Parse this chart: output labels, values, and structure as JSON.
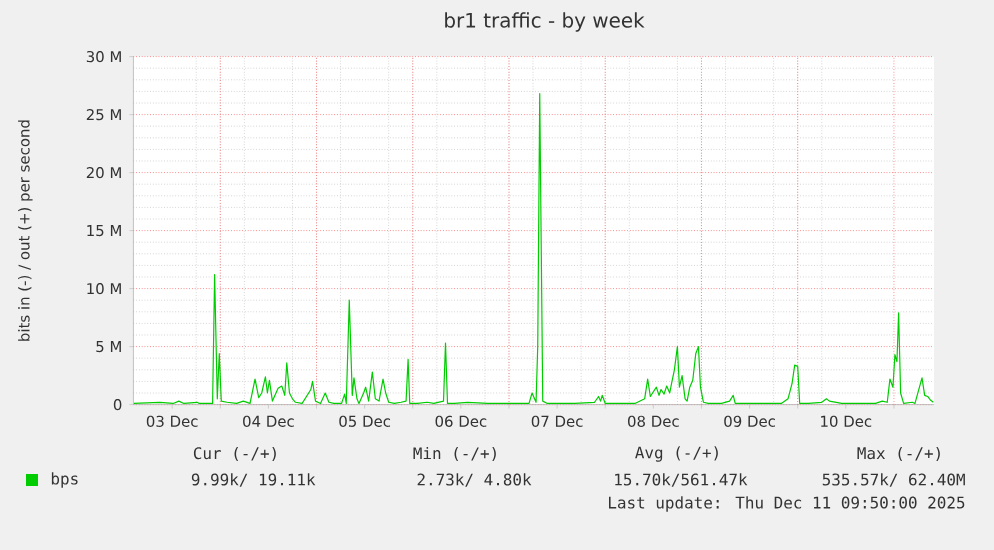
{
  "chart_data": {
    "type": "line",
    "title": "br1 traffic - by week",
    "ylabel": "bits in (-) / out (+) per second",
    "x": [
      "2025-12-03T02:25",
      "2025-12-03T08:55",
      "2025-12-03T12:15",
      "2025-12-03T13:40",
      "2025-12-03T14:55",
      "2025-12-03T18:15",
      "2025-12-03T18:45",
      "2025-12-03T22:05",
      "2025-12-03T22:35",
      "2025-12-03T23:15",
      "2025-12-03T23:45",
      "2025-12-04T00:15",
      "2025-12-04T01:40",
      "2025-12-04T04:05",
      "2025-12-04T05:45",
      "2025-12-04T07:25",
      "2025-12-04T08:40",
      "2025-12-04T09:35",
      "2025-12-04T10:20",
      "2025-12-04T11:15",
      "2025-12-04T11:45",
      "2025-12-04T12:15",
      "2025-12-04T13:00",
      "2025-12-04T14:25",
      "2025-12-04T15:20",
      "2025-12-04T16:05",
      "2025-12-04T16:35",
      "2025-12-04T17:15",
      "2025-12-04T18:00",
      "2025-12-04T18:45",
      "2025-12-04T20:25",
      "2025-12-04T22:35",
      "2025-12-04T23:00",
      "2025-12-04T23:45",
      "2025-12-05T01:00",
      "2025-12-05T02:10",
      "2025-12-05T03:05",
      "2025-12-05T04:20",
      "2025-12-05T06:15",
      "2025-12-05T07:00",
      "2025-12-05T07:25",
      "2025-12-05T08:10",
      "2025-12-05T08:55",
      "2025-12-05T09:20",
      "2025-12-05T10:05",
      "2025-12-05T10:35",
      "2025-12-05T11:45",
      "2025-12-05T12:15",
      "2025-12-05T13:00",
      "2025-12-05T13:55",
      "2025-12-05T14:40",
      "2025-12-05T15:35",
      "2025-12-05T16:35",
      "2025-12-05T17:15",
      "2025-12-05T18:00",
      "2025-12-05T19:25",
      "2025-12-05T21:05",
      "2025-12-05T22:20",
      "2025-12-05T22:50",
      "2025-12-05T23:15",
      "2025-12-06T01:10",
      "2025-12-06T03:35",
      "2025-12-06T05:15",
      "2025-12-06T07:40",
      "2025-12-06T08:10",
      "2025-12-06T08:40",
      "2025-12-06T10:20",
      "2025-12-06T13:40",
      "2025-12-06T18:45",
      "2025-12-06T22:50",
      "2025-12-07T03:05",
      "2025-12-07T05:00",
      "2025-12-07T05:45",
      "2025-12-07T06:45",
      "2025-12-07T07:10",
      "2025-12-07T07:40",
      "2025-12-07T08:25",
      "2025-12-07T09:35",
      "2025-12-07T16:20",
      "2025-12-07T21:20",
      "2025-12-07T22:20",
      "2025-12-07T22:50",
      "2025-12-07T23:15",
      "2025-12-08T00:00",
      "2025-12-08T04:05",
      "2025-12-08T07:25",
      "2025-12-08T09:50",
      "2025-12-08T10:35",
      "2025-12-08T11:15",
      "2025-12-08T12:00",
      "2025-12-08T12:45",
      "2025-12-08T13:25",
      "2025-12-08T13:55",
      "2025-12-08T14:40",
      "2025-12-08T15:20",
      "2025-12-08T16:05",
      "2025-12-08T16:35",
      "2025-12-08T17:15",
      "2025-12-08T18:00",
      "2025-12-08T18:30",
      "2025-12-08T19:10",
      "2025-12-08T19:55",
      "2025-12-08T20:25",
      "2025-12-08T21:05",
      "2025-12-08T21:50",
      "2025-12-08T22:35",
      "2025-12-08T23:15",
      "2025-12-08T23:45",
      "2025-12-09T00:30",
      "2025-12-09T01:40",
      "2025-12-09T05:00",
      "2025-12-09T07:00",
      "2025-12-09T07:55",
      "2025-12-09T08:25",
      "2025-12-09T11:45",
      "2025-12-09T15:05",
      "2025-12-09T19:55",
      "2025-12-09T21:35",
      "2025-12-09T22:35",
      "2025-12-09T23:15",
      "2025-12-10T00:00",
      "2025-12-10T00:30",
      "2025-12-10T02:40",
      "2025-12-10T06:00",
      "2025-12-10T07:10",
      "2025-12-10T07:55",
      "2025-12-10T11:00",
      "2025-12-10T14:25",
      "2025-12-10T19:25",
      "2025-12-10T21:05",
      "2025-12-10T22:20",
      "2025-12-10T23:00",
      "2025-12-10T23:45",
      "2025-12-11T00:15",
      "2025-12-11T00:45",
      "2025-12-11T01:10",
      "2025-12-11T01:40",
      "2025-12-11T02:25",
      "2025-12-11T04:35",
      "2025-12-11T05:15",
      "2025-12-11T07:00",
      "2025-12-11T07:40",
      "2025-12-11T08:25",
      "2025-12-11T09:05",
      "2025-12-11T09:50"
    ],
    "series": [
      {
        "name": "bps",
        "color": "#00cc00",
        "values": [
          0.1,
          0.2,
          0.1,
          0.3,
          0.1,
          0.2,
          0.1,
          0.1,
          11.2,
          0.5,
          4.4,
          0.3,
          0.2,
          0.1,
          0.3,
          0.1,
          2.2,
          0.6,
          1.0,
          2.4,
          1.0,
          2.1,
          0.3,
          1.4,
          1.6,
          0.8,
          3.6,
          1.0,
          0.5,
          0.2,
          0.1,
          1.3,
          2.0,
          0.3,
          0.1,
          1.0,
          0.2,
          0.1,
          0.1,
          0.9,
          0.1,
          9.0,
          0.8,
          2.3,
          0.5,
          0.1,
          1.0,
          1.5,
          0.3,
          2.8,
          0.5,
          0.3,
          2.2,
          1.0,
          0.2,
          0.1,
          0.2,
          0.3,
          3.9,
          0.1,
          0.1,
          0.2,
          0.1,
          0.3,
          5.3,
          0.1,
          0.1,
          0.2,
          0.1,
          0.1,
          0.1,
          0.1,
          1.0,
          0.2,
          5.0,
          26.8,
          0.3,
          0.1,
          0.1,
          0.2,
          0.7,
          0.3,
          0.8,
          0.1,
          0.1,
          0.1,
          0.5,
          2.2,
          0.7,
          1.1,
          1.5,
          0.8,
          1.3,
          0.9,
          1.6,
          1.0,
          1.9,
          3.0,
          5.0,
          1.5,
          2.5,
          0.5,
          0.3,
          1.5,
          2.1,
          4.4,
          5.0,
          1.5,
          0.2,
          0.1,
          0.1,
          0.3,
          0.8,
          0.1,
          0.1,
          0.1,
          0.1,
          0.5,
          1.8,
          3.4,
          3.3,
          0.1,
          0.1,
          0.2,
          0.5,
          0.3,
          0.1,
          0.1,
          0.1,
          0.3,
          0.2,
          2.2,
          1.5,
          4.3,
          3.7,
          7.9,
          1.0,
          0.1,
          0.2,
          0.1,
          2.3,
          0.8,
          0.7,
          0.4,
          0.2
        ]
      }
    ],
    "xlim": [
      "2025-12-03T02:20",
      "2025-12-11T10:00"
    ],
    "ylim": [
      0,
      30
    ],
    "xticks": [
      {
        "value": "2025-12-03T12:00",
        "label": "03 Dec"
      },
      {
        "value": "2025-12-04T12:00",
        "label": "04 Dec"
      },
      {
        "value": "2025-12-05T12:00",
        "label": "05 Dec"
      },
      {
        "value": "2025-12-06T12:00",
        "label": "06 Dec"
      },
      {
        "value": "2025-12-07T12:00",
        "label": "07 Dec"
      },
      {
        "value": "2025-12-08T12:00",
        "label": "08 Dec"
      },
      {
        "value": "2025-12-09T12:00",
        "label": "09 Dec"
      },
      {
        "value": "2025-12-10T12:00",
        "label": "10 Dec"
      },
      {
        "value": "2025-12-04",
        "label": null
      },
      {
        "value": "2025-12-05",
        "label": null
      },
      {
        "value": "2025-12-06",
        "label": null
      },
      {
        "value": "2025-12-07",
        "label": null
      },
      {
        "value": "2025-12-08",
        "label": null
      },
      {
        "value": "2025-12-09",
        "label": null
      },
      {
        "value": "2025-12-10",
        "label": null
      },
      {
        "value": "2025-12-11",
        "label": null
      }
    ],
    "yticks": [
      0,
      {
        "value": 5,
        "label": "5 M"
      },
      {
        "value": 10,
        "label": "10 M"
      },
      {
        "value": 15,
        "label": "15 M"
      },
      {
        "value": 20,
        "label": "20 M"
      },
      {
        "value": 25,
        "label": "25 M"
      },
      {
        "value": 30,
        "label": "30 M"
      }
    ],
    "grid": true,
    "legend": "bottom left",
    "annotations": [
      "Cur (-/+)",
      "Min (-/+)",
      "Avg (-/+)",
      "Max (-/+)",
      "9.99k/ 19.11k",
      "2.73k/  4.80k",
      "15.70k/561.47k",
      "535.57k/ 62.40M",
      "Last update: Thu Dec 11 09:50:00 2025"
    ]
  }
}
